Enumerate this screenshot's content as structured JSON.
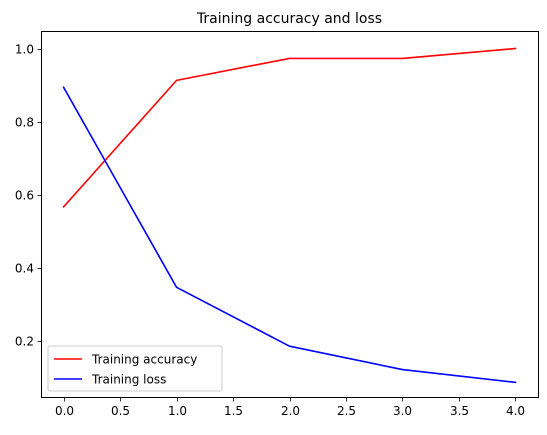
{
  "chart_data": {
    "type": "line",
    "title": "Training accuracy and loss",
    "xlabel": "",
    "ylabel": "",
    "x": [
      0,
      1,
      2,
      3,
      4
    ],
    "xlim": [
      -0.2,
      4.2
    ],
    "ylim": [
      0.047,
      1.048
    ],
    "xticks": [
      0.0,
      0.5,
      1.0,
      1.5,
      2.0,
      2.5,
      3.0,
      3.5,
      4.0
    ],
    "xtick_labels": [
      "0.0",
      "0.5",
      "1.0",
      "1.5",
      "2.0",
      "2.5",
      "3.0",
      "3.5",
      "4.0"
    ],
    "yticks": [
      0.2,
      0.4,
      0.6,
      0.8,
      1.0
    ],
    "ytick_labels": [
      "0.2",
      "0.4",
      "0.6",
      "0.8",
      "1.0"
    ],
    "grid": false,
    "legend_position": "lower-left",
    "series": [
      {
        "name": "Training accuracy",
        "color": "#ff0000",
        "values": [
          0.567,
          0.913,
          0.973,
          0.973,
          1.0
        ]
      },
      {
        "name": "Training loss",
        "color": "#0000ff",
        "values": [
          0.894,
          0.347,
          0.186,
          0.122,
          0.087
        ]
      }
    ]
  }
}
